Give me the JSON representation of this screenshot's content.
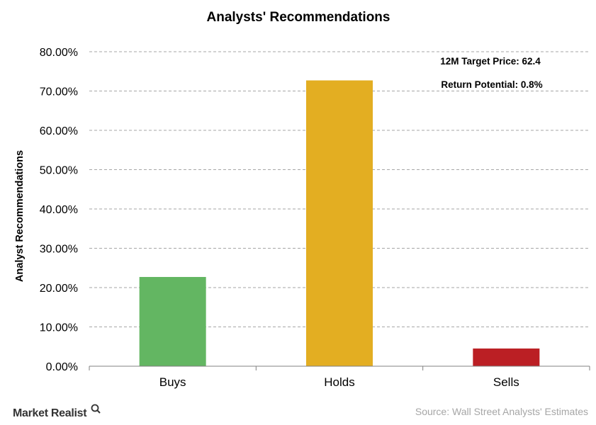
{
  "chart_data": {
    "type": "bar",
    "title": "Analysts'  Recommendations",
    "ylabel": "Analyst Recommendations",
    "xlabel": "",
    "categories": [
      "Buys",
      "Holds",
      "Sells"
    ],
    "values": [
      22.7,
      72.7,
      4.5
    ],
    "ylim": [
      0,
      80
    ],
    "yticks": [
      0,
      10,
      20,
      30,
      40,
      50,
      60,
      70,
      80
    ],
    "ytick_labels": [
      "0.00%",
      "10.00%",
      "20.00%",
      "30.00%",
      "40.00%",
      "50.00%",
      "60.00%",
      "70.00%",
      "80.00%"
    ],
    "bar_colors": [
      "#63b662",
      "#e3ae22",
      "#bb1f24"
    ],
    "grid": true,
    "annotations": [
      "12M Target Price: 62.4",
      "Return Potential: 0.8%"
    ]
  },
  "footer": {
    "brand": "Market Realist",
    "source": "Source: Wall Street Analysts' Estimates"
  },
  "colors": {
    "grid": "#a6a6a6",
    "axis": "#808080",
    "source_text": "#a6a6a6",
    "brand_text": "#333333"
  }
}
